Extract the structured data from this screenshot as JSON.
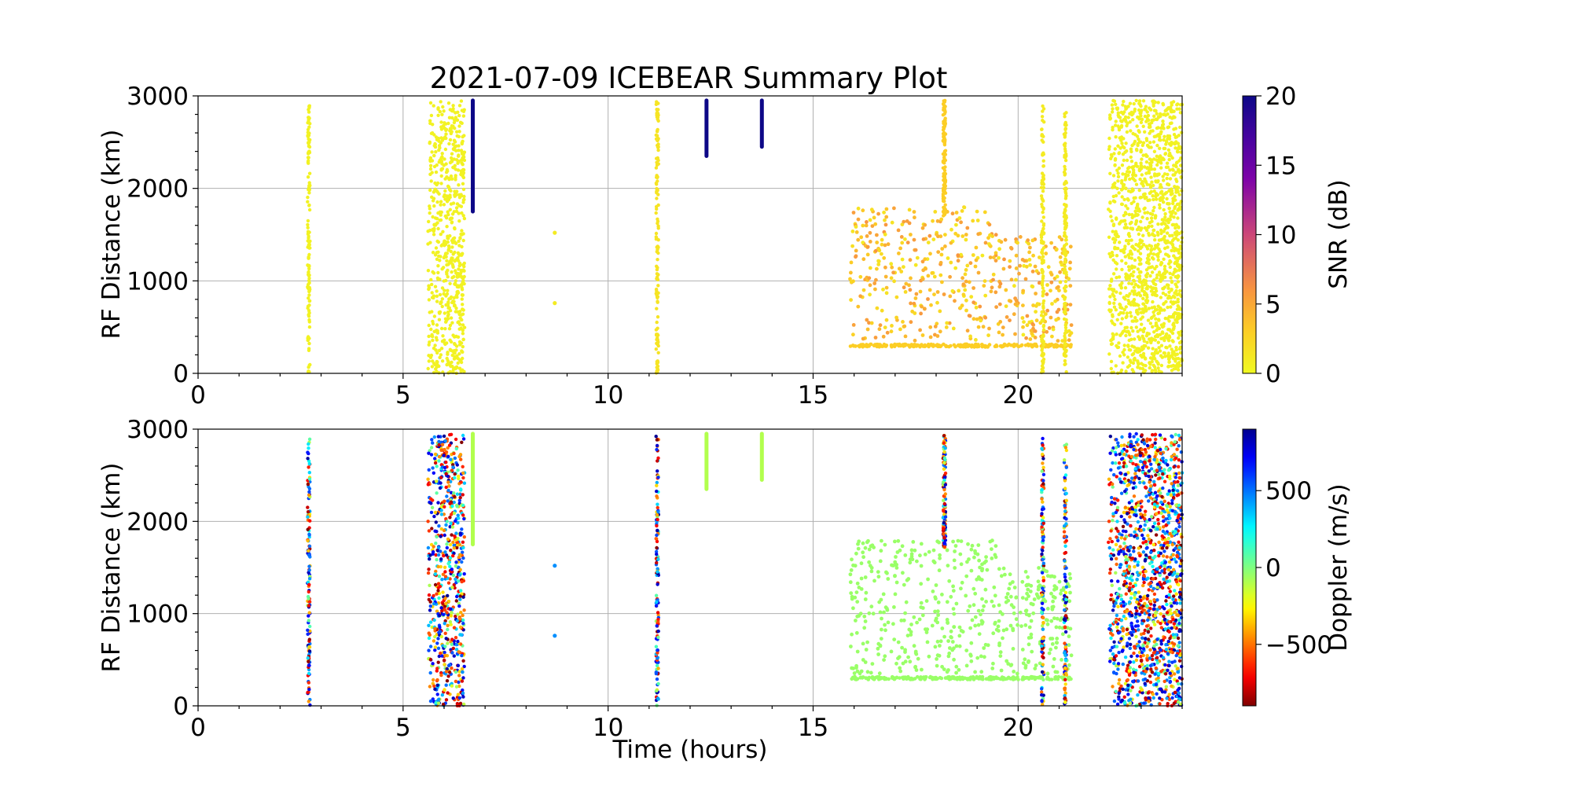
{
  "figure": {
    "title": "2021-07-09 ICEBEAR Summary Plot",
    "xlabel": "Time (hours)"
  },
  "colors": {
    "snr_cmap": "plasma_r",
    "doppler_cmap": "jet_r",
    "grid": "#b0b0b0",
    "axes": "#000000"
  },
  "chart_data": [
    {
      "type": "scatter",
      "name": "snr-panel",
      "xlabel": "",
      "ylabel": "RF Distance (km)",
      "xlim": [
        0,
        24
      ],
      "ylim": [
        0,
        3000
      ],
      "xticks": [
        0,
        5,
        10,
        15,
        20
      ],
      "yticks": [
        0,
        1000,
        2000,
        3000
      ],
      "grid": true,
      "colorbar": {
        "label": "SNR (dB)",
        "range": [
          0,
          20
        ],
        "ticks": [
          0,
          5,
          10,
          15,
          20
        ],
        "colormap": "plasma_r"
      },
      "features": [
        {
          "kind": "vertical_streak",
          "t": 2.7,
          "r": [
            0,
            2900
          ],
          "value": 0.5
        },
        {
          "kind": "cluster",
          "t": [
            5.6,
            6.5
          ],
          "r": [
            0,
            2950
          ],
          "value": 0.5
        },
        {
          "kind": "segment",
          "t": 6.7,
          "r": [
            1750,
            2950
          ],
          "value": 20
        },
        {
          "kind": "point",
          "t": 8.7,
          "r": 1520,
          "value": 1
        },
        {
          "kind": "point",
          "t": 8.7,
          "r": 760,
          "value": 1
        },
        {
          "kind": "vertical_streak",
          "t": 11.2,
          "r": [
            0,
            2950
          ],
          "value": 1.5
        },
        {
          "kind": "segment",
          "t": 12.4,
          "r": [
            2350,
            2950
          ],
          "value": 20
        },
        {
          "kind": "segment",
          "t": 13.75,
          "r": [
            2450,
            2950
          ],
          "value": 20
        },
        {
          "kind": "scatter_cloud",
          "t": [
            15.9,
            21.3
          ],
          "r": [
            350,
            1800
          ],
          "value": [
            1,
            6
          ]
        },
        {
          "kind": "horizontal_band",
          "t": [
            15.9,
            21.3
          ],
          "r": 300,
          "value": 3
        },
        {
          "kind": "vertical_streak",
          "t": 18.2,
          "r": [
            1700,
            2950
          ],
          "value": 3
        },
        {
          "kind": "vertical_streak",
          "t": 20.6,
          "r": [
            0,
            2900
          ],
          "value": 1
        },
        {
          "kind": "vertical_streak",
          "t": 21.15,
          "r": [
            0,
            2850
          ],
          "value": 1
        },
        {
          "kind": "cluster",
          "t": [
            22.2,
            24
          ],
          "r": [
            0,
            2950
          ],
          "value": 0.5
        }
      ]
    },
    {
      "type": "scatter",
      "name": "doppler-panel",
      "xlabel": "Time (hours)",
      "ylabel": "RF Distance (km)",
      "xlim": [
        0,
        24
      ],
      "ylim": [
        0,
        3000
      ],
      "xticks": [
        0,
        5,
        10,
        15,
        20
      ],
      "yticks": [
        0,
        1000,
        2000,
        3000
      ],
      "grid": true,
      "colorbar": {
        "label": "Doppler (m/s)",
        "range": [
          -900,
          900
        ],
        "ticks": [
          -500,
          0,
          500
        ],
        "tick_labels": [
          "−500",
          "0",
          "500"
        ],
        "colormap": "jet_r"
      },
      "features": [
        {
          "kind": "vertical_streak",
          "t": 2.7,
          "r": [
            0,
            2900
          ],
          "value": "mixed"
        },
        {
          "kind": "cluster",
          "t": [
            5.6,
            6.5
          ],
          "r": [
            0,
            2950
          ],
          "value": "mixed"
        },
        {
          "kind": "segment",
          "t": 6.7,
          "r": [
            1750,
            2950
          ],
          "value": -100
        },
        {
          "kind": "point",
          "t": 8.7,
          "r": 1520,
          "value": 450
        },
        {
          "kind": "point",
          "t": 8.7,
          "r": 760,
          "value": 450
        },
        {
          "kind": "vertical_streak",
          "t": 11.2,
          "r": [
            0,
            2950
          ],
          "value": "mixed"
        },
        {
          "kind": "segment",
          "t": 12.4,
          "r": [
            2350,
            2950
          ],
          "value": -100
        },
        {
          "kind": "segment",
          "t": 13.75,
          "r": [
            2450,
            2950
          ],
          "value": -100
        },
        {
          "kind": "scatter_cloud",
          "t": [
            15.9,
            21.3
          ],
          "r": [
            350,
            1800
          ],
          "value": -50
        },
        {
          "kind": "horizontal_band",
          "t": [
            15.9,
            21.3
          ],
          "r": 300,
          "value": -50
        },
        {
          "kind": "vertical_streak",
          "t": 18.2,
          "r": [
            1700,
            2950
          ],
          "value": "mixed"
        },
        {
          "kind": "vertical_streak",
          "t": 20.6,
          "r": [
            0,
            2900
          ],
          "value": "mixed"
        },
        {
          "kind": "vertical_streak",
          "t": 21.15,
          "r": [
            0,
            2850
          ],
          "value": "mixed"
        },
        {
          "kind": "cluster",
          "t": [
            22.2,
            24
          ],
          "r": [
            0,
            2950
          ],
          "value": "mixed"
        }
      ]
    }
  ]
}
